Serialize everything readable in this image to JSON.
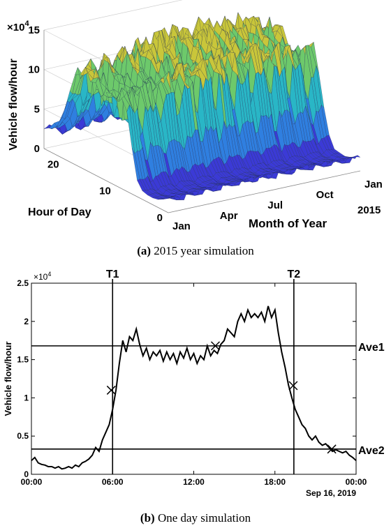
{
  "chart_data": [
    {
      "type": "surface3d",
      "caption_label": "(a)",
      "caption_text": "2015 year simulation",
      "zlabel": "Vehicle flow/hour",
      "z_exponent": "×10",
      "z_exponent_power": "4",
      "z_ticks": [
        "0",
        "5",
        "10",
        "15"
      ],
      "z_range": [
        0,
        15
      ],
      "ylabel": "Hour of Day",
      "y_ticks": [
        "0",
        "10",
        "20"
      ],
      "xlabel": "Month of Year",
      "x_ticks": [
        "Jan",
        "Apr",
        "Jul",
        "Oct",
        "Jan"
      ],
      "x_year_label": "2015",
      "colormap": [
        "#3b3ad6",
        "#2f7fe0",
        "#29b6c6",
        "#6dc96b",
        "#c9c63a",
        "#f0e022"
      ],
      "hour_profile_1e4": [
        2,
        1.5,
        1.2,
        1,
        1,
        1.2,
        2.5,
        6,
        11,
        13,
        12.5,
        12,
        12,
        12.5,
        13,
        13.5,
        14,
        14,
        12.5,
        10,
        7.5,
        5.5,
        4,
        3
      ],
      "month_scale": [
        0.9,
        0.92,
        0.97,
        1.0,
        1.02,
        1.03,
        1.02,
        1.04,
        1.03,
        1.0,
        0.97,
        0.93
      ]
    },
    {
      "type": "line",
      "caption_label": "(b)",
      "caption_text": "One day simulation",
      "ylabel": "Vehicle flow/hour",
      "y_exponent": "×10",
      "y_exponent_power": "4",
      "ylim": [
        0,
        2.5
      ],
      "y_ticks": [
        "0",
        "0.5",
        "1",
        "1.5",
        "2",
        "2.5"
      ],
      "x_ticks": [
        "00:00",
        "06:00",
        "12:00",
        "18:00",
        "00:00"
      ],
      "date_label": "Sep 16, 2019",
      "xlim_hours": [
        0,
        24
      ],
      "series": [
        {
          "x_hours": [
            0,
            0.25,
            0.5,
            0.75,
            1,
            1.25,
            1.5,
            1.75,
            2,
            2.25,
            2.5,
            2.75,
            3,
            3.25,
            3.5,
            3.75,
            4,
            4.25,
            4.5,
            4.75,
            5,
            5.25,
            5.5,
            5.75,
            6,
            6.25,
            6.5,
            6.75,
            7,
            7.25,
            7.5,
            7.75,
            8,
            8.25,
            8.5,
            8.75,
            9,
            9.25,
            9.5,
            9.75,
            10,
            10.25,
            10.5,
            10.75,
            11,
            11.25,
            11.5,
            11.75,
            12,
            12.25,
            12.5,
            12.75,
            13,
            13.25,
            13.5,
            13.75,
            14,
            14.25,
            14.5,
            14.75,
            15,
            15.25,
            15.5,
            15.75,
            16,
            16.25,
            16.5,
            16.75,
            17,
            17.25,
            17.5,
            17.75,
            18,
            18.25,
            18.5,
            18.75,
            19,
            19.25,
            19.5,
            19.75,
            20,
            20.25,
            20.5,
            20.75,
            21,
            21.25,
            21.5,
            21.75,
            22,
            22.25,
            22.5,
            22.75,
            23,
            23.25,
            23.5,
            23.75,
            24
          ],
          "y": [
            0.18,
            0.22,
            0.15,
            0.13,
            0.12,
            0.1,
            0.1,
            0.08,
            0.1,
            0.07,
            0.08,
            0.1,
            0.08,
            0.12,
            0.1,
            0.15,
            0.17,
            0.2,
            0.25,
            0.35,
            0.3,
            0.45,
            0.55,
            0.65,
            0.85,
            1.1,
            1.45,
            1.75,
            1.6,
            1.8,
            1.75,
            1.9,
            1.7,
            1.55,
            1.65,
            1.5,
            1.6,
            1.55,
            1.62,
            1.48,
            1.6,
            1.5,
            1.58,
            1.45,
            1.6,
            1.52,
            1.65,
            1.5,
            1.58,
            1.45,
            1.55,
            1.5,
            1.68,
            1.55,
            1.62,
            1.58,
            1.7,
            1.75,
            1.9,
            1.85,
            1.8,
            2.0,
            2.1,
            2.0,
            2.15,
            2.05,
            2.1,
            2.05,
            2.12,
            2.0,
            2.2,
            2.05,
            2.15,
            1.85,
            1.6,
            1.4,
            1.17,
            1.0,
            0.85,
            0.75,
            0.65,
            0.6,
            0.5,
            0.45,
            0.5,
            0.42,
            0.38,
            0.4,
            0.35,
            0.3,
            0.32,
            0.3,
            0.28,
            0.3,
            0.25,
            0.22,
            0.18
          ]
        }
      ],
      "ref_lines_h": [
        {
          "label": "Ave1",
          "y": 1.68
        },
        {
          "label": "Ave2",
          "y": 0.33
        }
      ],
      "ref_lines_v": [
        {
          "label": "T1",
          "x_hours": 6.0
        },
        {
          "label": "T2",
          "x_hours": 19.4
        }
      ],
      "markers": [
        {
          "x_hours": 5.9,
          "y": 1.1
        },
        {
          "x_hours": 13.6,
          "y": 1.68
        },
        {
          "x_hours": 19.35,
          "y": 1.16
        },
        {
          "x_hours": 22.2,
          "y": 0.33
        }
      ]
    }
  ]
}
